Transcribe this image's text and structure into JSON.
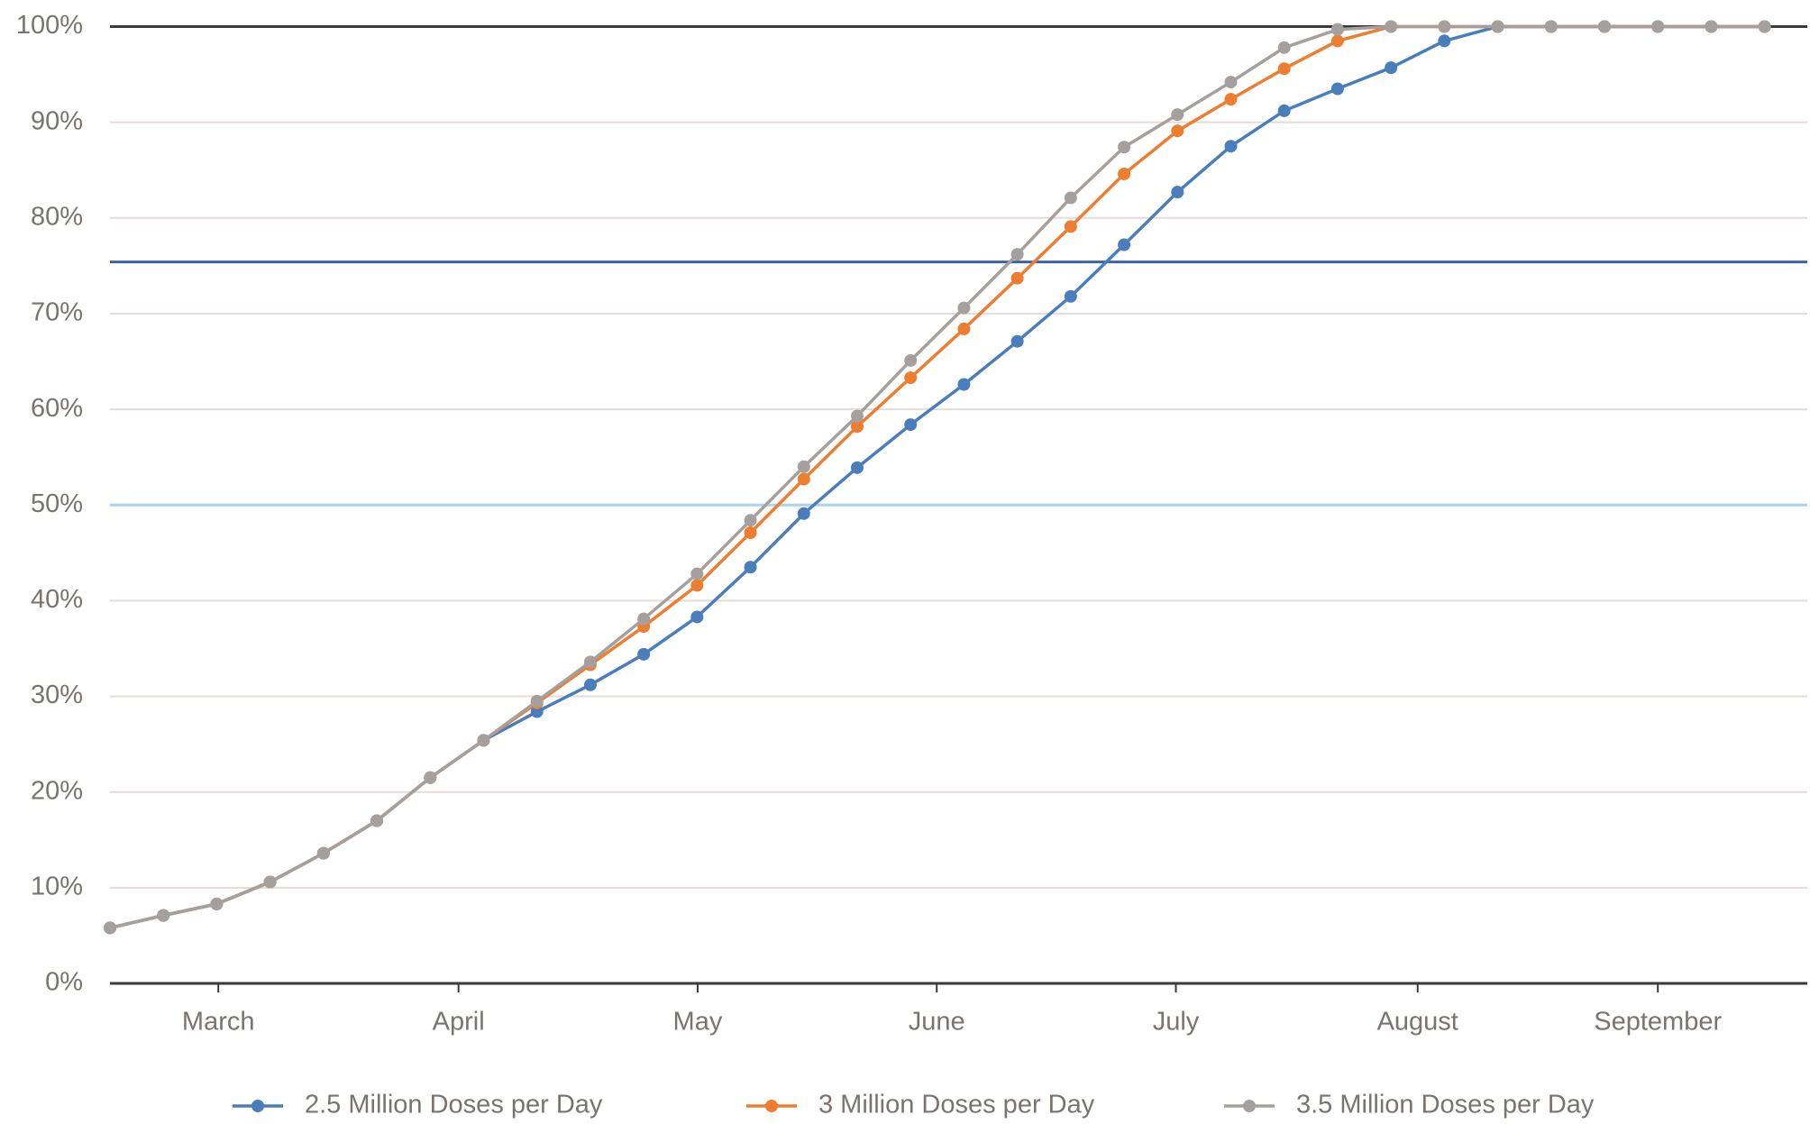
{
  "chart_data": {
    "type": "line",
    "x": [
      0,
      1,
      2,
      3,
      4,
      5,
      6,
      7,
      8,
      9,
      10,
      11,
      12,
      13,
      14,
      15,
      16,
      17,
      18,
      19,
      20,
      21,
      22,
      23,
      24,
      25,
      26,
      27,
      28,
      29,
      30,
      31
    ],
    "xlim": [
      0,
      31.8
    ],
    "xticks": [
      {
        "value": 2.03,
        "label": "March"
      },
      {
        "value": 6.53,
        "label": "April"
      },
      {
        "value": 11.01,
        "label": "May"
      },
      {
        "value": 15.49,
        "label": "June"
      },
      {
        "value": 19.97,
        "label": "July"
      },
      {
        "value": 24.5,
        "label": "August"
      },
      {
        "value": 29.0,
        "label": "September"
      }
    ],
    "ylim": [
      0,
      100
    ],
    "yticks": [
      {
        "value": 0,
        "label": "0%"
      },
      {
        "value": 10,
        "label": "10%"
      },
      {
        "value": 20,
        "label": "20%"
      },
      {
        "value": 30,
        "label": "30%"
      },
      {
        "value": 40,
        "label": "40%"
      },
      {
        "value": 50,
        "label": "50%"
      },
      {
        "value": 60,
        "label": "60%"
      },
      {
        "value": 70,
        "label": "70%"
      },
      {
        "value": 80,
        "label": "80%"
      },
      {
        "value": 90,
        "label": "90%"
      },
      {
        "value": 100,
        "label": "100%"
      }
    ],
    "grid": true,
    "reference_lines": [
      {
        "value": 100,
        "color": "#3a3a3a"
      },
      {
        "value": 75.4,
        "color": "#3d62a0"
      },
      {
        "value": 50,
        "color": "#a8d4ee"
      }
    ],
    "series": [
      {
        "name": "2.5 Million Doses per Day",
        "color": "#4a7ebb",
        "values": [
          5.8,
          7.1,
          8.3,
          10.6,
          13.6,
          17,
          21.5,
          25.4,
          28.4,
          31.2,
          34.4,
          38.3,
          43.5,
          49.1,
          53.9,
          58.4,
          62.6,
          67.1,
          71.8,
          77.2,
          82.7,
          87.5,
          91.2,
          93.5,
          95.7,
          98.5,
          100,
          100,
          100,
          100,
          100,
          100
        ]
      },
      {
        "name": "3 Million Doses per Day",
        "color": "#ed7d31",
        "values": [
          5.8,
          7.1,
          8.3,
          10.6,
          13.6,
          17,
          21.5,
          25.4,
          29.3,
          33.3,
          37.3,
          41.6,
          47.1,
          52.7,
          58.2,
          63.3,
          68.4,
          73.7,
          79.1,
          84.6,
          89.1,
          92.4,
          95.6,
          98.5,
          100,
          100,
          100,
          100,
          100,
          100,
          100,
          100
        ]
      },
      {
        "name": "3.5 Million Doses per Day",
        "color": "#a5a09e",
        "values": [
          5.8,
          7.1,
          8.3,
          10.6,
          13.6,
          17,
          21.5,
          25.4,
          29.5,
          33.6,
          38.1,
          42.8,
          48.4,
          54,
          59.3,
          65.1,
          70.6,
          76.2,
          82.1,
          87.4,
          90.8,
          94.2,
          97.8,
          99.7,
          100,
          100,
          100,
          100,
          100,
          100,
          100,
          100
        ]
      }
    ]
  }
}
